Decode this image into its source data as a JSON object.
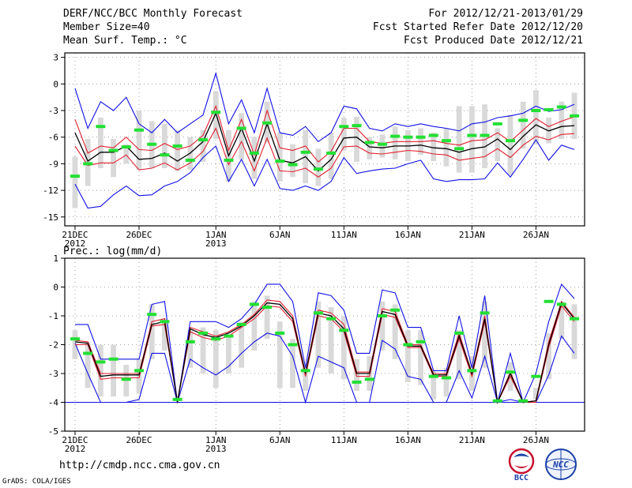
{
  "header": {
    "title": "DERF/NCC/BCC Monthly Forecast",
    "member_size": "Member Size=40",
    "variable1": "Mean Surf. Temp.: °C",
    "period": "For 2012/12/21-2013/01/29",
    "started": "Fcst Started Refer Date 2012/12/20",
    "produced": "Fcst Produced Date 2012/12/21"
  },
  "footer": {
    "url": "http://cmdp.ncc.cma.gov.cn",
    "grads": "GrADS: COLA/IGES",
    "logo_bcc": "BCC",
    "logo_ncc": "NCC"
  },
  "colors": {
    "ensemble_box": "#d9d9d9",
    "median_mark": "#22e033",
    "mean": "#000000",
    "spread": "#e0202e",
    "extreme": "#1010e6",
    "grid": "#888888"
  },
  "chart_data": [
    {
      "type": "line",
      "title": "Mean Surf. Temp.: °C",
      "ylim": [
        -16,
        3.5
      ],
      "yticks": [
        3,
        0,
        -3,
        -6,
        -9,
        -12,
        -15
      ],
      "xlim": [
        0.2,
        40.8
      ],
      "xticks": [
        {
          "day": 1,
          "label": "21DEC",
          "sub": "2012"
        },
        {
          "day": 6,
          "label": "26DEC"
        },
        {
          "day": 12,
          "label": "1JAN",
          "sub": "2013"
        },
        {
          "day": 17,
          "label": "6JAN"
        },
        {
          "day": 22,
          "label": "11JAN"
        },
        {
          "day": 27,
          "label": "16JAN"
        },
        {
          "day": 32,
          "label": "21JAN"
        },
        {
          "day": 37,
          "label": "26JAN"
        }
      ],
      "grid": true,
      "x": [
        1,
        2,
        3,
        4,
        5,
        6,
        7,
        8,
        9,
        10,
        11,
        12,
        13,
        14,
        15,
        16,
        17,
        18,
        19,
        20,
        21,
        22,
        23,
        24,
        25,
        26,
        27,
        28,
        29,
        30,
        31,
        32,
        33,
        34,
        35,
        36,
        37,
        38,
        39,
        40
      ],
      "series": [
        {
          "name": "max",
          "values": [
            -0.5,
            -5,
            -2,
            -3,
            -1.5,
            -4.5,
            -5.5,
            -4,
            -5.5,
            -4.5,
            -3.5,
            1.2,
            -4.5,
            -1.8,
            -5.5,
            -0.5,
            -5.5,
            -5.8,
            -4.8,
            -6.5,
            -5.5,
            -2.5,
            -2.8,
            -5.0,
            -5.3,
            -4.5,
            -4.8,
            -4.5,
            -4.8,
            -5.0,
            -5.3,
            -4.5,
            -4.3,
            -3.8,
            -3.6,
            -3.3,
            -2.5,
            -3.1,
            -2.9,
            -2.3
          ]
        },
        {
          "name": "upper",
          "values": [
            -4.0,
            -7.8,
            -7.0,
            -7.2,
            -6.0,
            -7.4,
            -7.5,
            -6.7,
            -7.4,
            -7.0,
            -5.8,
            -2.5,
            -7.5,
            -4.0,
            -8.0,
            -3.0,
            -7.2,
            -7.5,
            -7.0,
            -8.8,
            -7.6,
            -5.0,
            -5.0,
            -6.5,
            -6.7,
            -6.5,
            -6.5,
            -6.5,
            -6.4,
            -6.7,
            -6.9,
            -6.4,
            -6.3,
            -5.5,
            -6.5,
            -5.2,
            -3.9,
            -4.8,
            -4.2,
            -3.7
          ]
        },
        {
          "name": "mean",
          "values": [
            -5.5,
            -8.7,
            -7.7,
            -7.7,
            -7.0,
            -8.5,
            -8.4,
            -7.8,
            -8.7,
            -7.8,
            -6.5,
            -3.3,
            -8.1,
            -5.0,
            -8.7,
            -4.5,
            -8.6,
            -8.9,
            -8.2,
            -9.8,
            -8.5,
            -6.1,
            -6.0,
            -7.1,
            -7.2,
            -7.0,
            -7.0,
            -6.9,
            -7.2,
            -7.3,
            -7.7,
            -7.3,
            -7.1,
            -6.2,
            -7.4,
            -5.9,
            -4.6,
            -5.3,
            -4.8,
            -4.7
          ]
        },
        {
          "name": "lower",
          "values": [
            -7.0,
            -9.2,
            -8.9,
            -8.9,
            -8.0,
            -9.7,
            -9.5,
            -8.9,
            -9.7,
            -8.9,
            -7.6,
            -5.0,
            -9.1,
            -6.5,
            -9.8,
            -6.1,
            -9.8,
            -9.9,
            -9.5,
            -10.5,
            -9.5,
            -7.1,
            -7.0,
            -7.8,
            -7.9,
            -7.7,
            -7.5,
            -7.6,
            -7.9,
            -8.0,
            -8.6,
            -8.4,
            -8.2,
            -7.3,
            -8.3,
            -6.9,
            -5.9,
            -6.3,
            -5.7,
            -5.6
          ]
        },
        {
          "name": "min",
          "values": [
            -11.3,
            -14.0,
            -13.8,
            -12.5,
            -11.5,
            -12.6,
            -12.5,
            -11.5,
            -11.0,
            -10.0,
            -8.3,
            -7.0,
            -11.0,
            -8.5,
            -11.5,
            -8.5,
            -11.8,
            -12.0,
            -11.5,
            -12.0,
            -11.0,
            -8.3,
            -10.1,
            -9.8,
            -9.6,
            -9.5,
            -9.0,
            -8.6,
            -10.7,
            -11.0,
            -10.8,
            -10.8,
            -10.7,
            -8.9,
            -10.5,
            -8.5,
            -6.3,
            -8.6,
            -6.9,
            -7.4
          ]
        },
        {
          "name": "box_high",
          "values": [
            -8.2,
            -6.2,
            -3.8,
            -6.2,
            -6.8,
            -3.0,
            -4.2,
            -4.5,
            -5.2,
            -6.0,
            -5.2,
            -0.8,
            -5.2,
            -3.3,
            -6.0,
            -2.0,
            -5.5,
            -6.8,
            -5.2,
            -7.3,
            -5.5,
            -3.8,
            -3.7,
            -6.0,
            -5.7,
            -4.8,
            -5.2,
            -5.0,
            -5.5,
            -5.0,
            -2.5,
            -2.5,
            -2.3,
            -5.0,
            -3.5,
            -2.0,
            -0.7,
            -3.8,
            -2.0,
            -1.0
          ]
        },
        {
          "name": "box_low",
          "values": [
            -14.0,
            -11.5,
            -9.5,
            -10.5,
            -9.0,
            -9.7,
            -9.5,
            -9.5,
            -9.8,
            -9.7,
            -8.8,
            -6.2,
            -11.0,
            -8.5,
            -10.7,
            -6.6,
            -11.0,
            -10.5,
            -11.2,
            -11.5,
            -10.7,
            -7.5,
            -8.8,
            -8.5,
            -8.3,
            -8.5,
            -8.7,
            -8.0,
            -8.7,
            -9.3,
            -10.0,
            -10.0,
            -9.5,
            -8.7,
            -10.3,
            -7.3,
            -6.8,
            -6.7,
            -6.2,
            -6.2
          ]
        },
        {
          "name": "median",
          "values": [
            -10.4,
            -9.0,
            -4.8,
            -7.5,
            -7.1,
            -5.2,
            -6.8,
            -8.0,
            -7.0,
            -8.6,
            -6.3,
            -3.2,
            -8.6,
            -5.0,
            -7.8,
            -4.4,
            -8.7,
            -9.1,
            -7.7,
            -9.6,
            -7.8,
            -4.8,
            -4.7,
            -6.6,
            -6.8,
            -5.9,
            -6.0,
            -6.0,
            -5.8,
            -6.4,
            -7.3,
            -5.8,
            -5.8,
            -4.5,
            -6.4,
            -4.1,
            -3.0,
            -2.9,
            -2.6,
            -3.6
          ]
        }
      ]
    },
    {
      "type": "line",
      "title": "Prec.: log(mm/d)",
      "ylim": [
        -5,
        1
      ],
      "yticks": [
        1,
        0,
        -1,
        -2,
        -3,
        -4,
        -5
      ],
      "xlim": [
        0.2,
        40.8
      ],
      "xticks": [
        {
          "day": 1,
          "label": "21DEC",
          "sub": "2012"
        },
        {
          "day": 6,
          "label": "26DEC"
        },
        {
          "day": 12,
          "label": "1JAN",
          "sub": "2013"
        },
        {
          "day": 17,
          "label": "6JAN"
        },
        {
          "day": 22,
          "label": "11JAN"
        },
        {
          "day": 27,
          "label": "16JAN"
        },
        {
          "day": 32,
          "label": "21JAN"
        },
        {
          "day": 37,
          "label": "26JAN"
        }
      ],
      "grid": true,
      "baseline": -4,
      "x": [
        1,
        2,
        3,
        4,
        5,
        6,
        7,
        8,
        9,
        10,
        11,
        12,
        13,
        14,
        15,
        16,
        17,
        18,
        19,
        20,
        21,
        22,
        23,
        24,
        25,
        26,
        27,
        28,
        29,
        30,
        31,
        32,
        33,
        34,
        35,
        36,
        37,
        38,
        39,
        40
      ],
      "series": [
        {
          "name": "max",
          "values": [
            -1.3,
            -1.3,
            -2.5,
            -2.5,
            -2.5,
            -2.5,
            -0.6,
            -0.5,
            -4.0,
            -1.2,
            -1.2,
            -1.2,
            -1.4,
            -1.1,
            -0.6,
            0.1,
            0.1,
            -0.5,
            -2.8,
            -0.2,
            -0.3,
            -0.8,
            -2.3,
            -2.3,
            -0.1,
            -0.2,
            -1.4,
            -1.4,
            -2.9,
            -2.9,
            -1.0,
            -2.8,
            -0.3,
            -4.0,
            -2.3,
            -4.0,
            -3.0,
            -1.2,
            0.1,
            -0.4
          ]
        },
        {
          "name": "upper",
          "values": [
            -1.85,
            -1.9,
            -3.0,
            -3.0,
            -3.0,
            -3.0,
            -1.2,
            -1.1,
            -4.0,
            -1.4,
            -1.55,
            -1.7,
            -1.55,
            -1.3,
            -0.95,
            -0.45,
            -0.5,
            -1.0,
            -3.0,
            -0.8,
            -0.9,
            -1.3,
            -2.95,
            -2.95,
            -0.75,
            -0.85,
            -2.0,
            -2.0,
            -3.0,
            -3.0,
            -1.6,
            -3.0,
            -1.0,
            -4.0,
            -2.95,
            -4.0,
            -3.95,
            -1.9,
            -0.5,
            -1.05
          ]
        },
        {
          "name": "mean",
          "values": [
            -1.9,
            -1.95,
            -3.1,
            -3.05,
            -3.05,
            -3.05,
            -1.3,
            -1.2,
            -4.0,
            -1.45,
            -1.65,
            -1.75,
            -1.6,
            -1.35,
            -1.0,
            -0.55,
            -0.6,
            -1.1,
            -3.0,
            -0.9,
            -1.0,
            -1.45,
            -3.0,
            -3.0,
            -0.85,
            -0.95,
            -2.05,
            -2.05,
            -3.05,
            -3.05,
            -1.7,
            -3.0,
            -1.1,
            -4.0,
            -3.0,
            -4.0,
            -3.95,
            -2.0,
            -0.55,
            -1.1
          ]
        },
        {
          "name": "lower",
          "values": [
            -2.0,
            -2.0,
            -3.2,
            -3.15,
            -3.15,
            -3.15,
            -1.35,
            -1.3,
            -4.0,
            -1.55,
            -1.75,
            -1.85,
            -1.7,
            -1.4,
            -1.1,
            -0.65,
            -0.7,
            -1.2,
            -3.1,
            -1.0,
            -1.1,
            -1.55,
            -3.1,
            -3.1,
            -0.95,
            -1.05,
            -2.1,
            -2.1,
            -3.1,
            -3.1,
            -1.8,
            -3.1,
            -1.2,
            -4.0,
            -3.1,
            -4.0,
            -4.0,
            -2.1,
            -0.65,
            -1.2
          ]
        },
        {
          "name": "min",
          "values": [
            -1.95,
            -3.0,
            -4.0,
            -4.0,
            -4.0,
            -3.9,
            -2.3,
            -2.3,
            -4.0,
            -2.5,
            -2.8,
            -3.05,
            -2.75,
            -2.3,
            -1.9,
            -1.6,
            -1.7,
            -2.4,
            -4.0,
            -2.4,
            -2.6,
            -2.8,
            -4.0,
            -4.0,
            -1.85,
            -2.15,
            -3.1,
            -3.2,
            -4.0,
            -4.0,
            -2.9,
            -3.85,
            -2.4,
            -4.0,
            -3.9,
            -4.0,
            -4.0,
            -3.05,
            -1.7,
            -2.3
          ]
        },
        {
          "name": "box_high",
          "values": [
            -1.5,
            -1.9,
            -2.0,
            -2.0,
            -2.7,
            -2.5,
            -0.6,
            -1.1,
            -4.0,
            -1.5,
            -1.4,
            -1.5,
            -1.7,
            -1.2,
            -0.5,
            -0.3,
            -1.2,
            -1.8,
            -2.8,
            -0.5,
            -0.7,
            -1.0,
            -2.5,
            -2.4,
            -0.5,
            -0.6,
            -1.5,
            -1.5,
            -2.9,
            -2.8,
            -1.5,
            -2.4,
            -0.5,
            -4.0,
            -2.6,
            -4.0,
            -3.5,
            -1.6,
            -0.5,
            -0.6
          ]
        },
        {
          "name": "box_low",
          "values": [
            -2.5,
            -3.5,
            -3.8,
            -3.8,
            -3.8,
            -3.7,
            -2.5,
            -2.2,
            -4.0,
            -2.8,
            -3.0,
            -3.5,
            -3.0,
            -2.8,
            -2.2,
            -1.8,
            -3.5,
            -3.5,
            -3.6,
            -2.8,
            -3.0,
            -3.2,
            -3.6,
            -3.6,
            -2.2,
            -2.5,
            -3.3,
            -3.4,
            -3.9,
            -3.8,
            -3.2,
            -3.6,
            -2.8,
            -4.0,
            -3.6,
            -4.0,
            -3.9,
            -3.2,
            -1.8,
            -2.5
          ]
        },
        {
          "name": "median",
          "values": [
            -1.8,
            -2.3,
            -2.6,
            -2.5,
            -3.2,
            -2.9,
            -0.95,
            -1.2,
            -3.9,
            -1.9,
            -1.6,
            -1.8,
            -1.7,
            -1.3,
            -0.6,
            -0.7,
            -1.6,
            -2.0,
            -2.9,
            -0.9,
            -1.1,
            -1.5,
            -3.3,
            -3.2,
            -1.0,
            -0.8,
            -2.0,
            -1.9,
            -3.1,
            -3.15,
            -1.6,
            -2.9,
            -0.9,
            -3.95,
            -2.95,
            -3.95,
            -3.1,
            -0.5,
            -0.6,
            -1.1
          ]
        }
      ]
    }
  ]
}
